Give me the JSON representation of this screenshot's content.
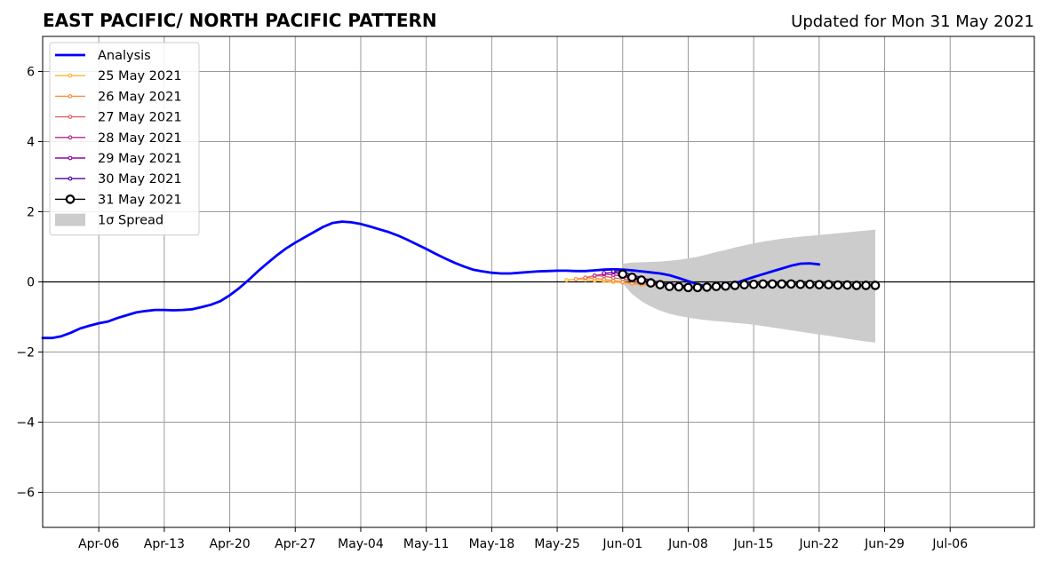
{
  "header": {
    "title": "EAST PACIFIC/ NORTH PACIFIC PATTERN",
    "updated": "Updated for Mon 31 May 2021"
  },
  "colors": {
    "analysis": "#0000ff",
    "spread": "#cccccc",
    "grid": "#999999",
    "forecast_31": "#000000"
  },
  "chart_data": {
    "type": "line",
    "title": "EAST PACIFIC/ NORTH PACIFIC PATTERN",
    "subtitle": "Updated for Mon 31 May 2021",
    "xlabel": "",
    "ylabel": "",
    "x_range": [
      "2021-03-31",
      "2021-07-15"
    ],
    "ylim": [
      -7,
      7
    ],
    "grid": true,
    "legend_position": "top-left",
    "x_ticks": [
      "Apr-06",
      "Apr-13",
      "Apr-20",
      "Apr-27",
      "May-04",
      "May-11",
      "May-18",
      "May-25",
      "Jun-01",
      "Jun-08",
      "Jun-15",
      "Jun-22",
      "Jun-29",
      "Jul-06"
    ],
    "x_tick_dates": [
      "2021-04-06",
      "2021-04-13",
      "2021-04-20",
      "2021-04-27",
      "2021-05-04",
      "2021-05-11",
      "2021-05-18",
      "2021-05-25",
      "2021-06-01",
      "2021-06-08",
      "2021-06-15",
      "2021-06-22",
      "2021-06-29",
      "2021-07-06"
    ],
    "y_ticks": [
      6,
      4,
      2,
      0,
      -2,
      -4,
      -6
    ],
    "y_tick_labels": [
      "6",
      "4",
      "2",
      "0",
      "−2",
      "−4",
      "−6"
    ],
    "analysis": {
      "name": "Analysis",
      "color": "#0000ff",
      "start_date": "2021-03-31",
      "values": [
        -1.6,
        -1.6,
        -1.55,
        -1.45,
        -1.33,
        -1.25,
        -1.18,
        -1.13,
        -1.03,
        -0.95,
        -0.87,
        -0.83,
        -0.8,
        -0.8,
        -0.81,
        -0.8,
        -0.78,
        -0.72,
        -0.65,
        -0.55,
        -0.38,
        -0.18,
        0.05,
        0.3,
        0.53,
        0.75,
        0.95,
        1.12,
        1.27,
        1.42,
        1.57,
        1.68,
        1.72,
        1.7,
        1.65,
        1.58,
        1.5,
        1.42,
        1.32,
        1.2,
        1.07,
        0.94,
        0.8,
        0.67,
        0.55,
        0.44,
        0.35,
        0.3,
        0.26,
        0.24,
        0.24,
        0.26,
        0.28,
        0.3,
        0.31,
        0.32,
        0.32,
        0.31,
        0.31,
        0.33,
        0.35,
        0.36,
        0.35,
        0.33,
        0.3,
        0.27,
        0.24,
        0.19,
        0.11,
        0.02,
        -0.07,
        -0.14,
        -0.15,
        -0.12,
        -0.04,
        0.05,
        0.14,
        0.22,
        0.3,
        0.38,
        0.46,
        0.52,
        0.53,
        0.5
      ]
    },
    "forecasts": [
      {
        "name": "25 May 2021",
        "color": "#fdb42f",
        "start_date": "2021-05-26",
        "values": [
          0.05,
          0.08,
          0.06,
          0.04,
          0.02,
          0.0,
          -0.02,
          -0.05,
          -0.08,
          -0.1,
          -0.12
        ]
      },
      {
        "name": "26 May 2021",
        "color": "#fb8d3c",
        "start_date": "2021-05-27",
        "values": [
          0.08,
          0.12,
          0.1,
          0.07,
          0.04,
          0.0,
          -0.04,
          -0.07,
          -0.1,
          -0.12,
          -0.14
        ]
      },
      {
        "name": "27 May 2021",
        "color": "#e16462",
        "start_date": "2021-05-28",
        "values": [
          0.12,
          0.18,
          0.16,
          0.12,
          0.08,
          0.03,
          -0.02,
          -0.06,
          -0.09,
          -0.11,
          -0.13
        ]
      },
      {
        "name": "28 May 2021",
        "color": "#b12a90",
        "start_date": "2021-05-29",
        "values": [
          0.18,
          0.22,
          0.2,
          0.16,
          0.1,
          0.05,
          0.0,
          -0.04,
          -0.07,
          -0.1,
          -0.12
        ]
      },
      {
        "name": "29 May 2021",
        "color": "#8b0aa5",
        "start_date": "2021-05-30",
        "values": [
          0.25,
          0.27,
          0.22,
          0.15,
          0.08,
          0.02,
          -0.03,
          -0.07,
          -0.1,
          -0.12
        ]
      },
      {
        "name": "30 May 2021",
        "color": "#5302a3",
        "start_date": "2021-05-31",
        "values": [
          0.3,
          0.28,
          0.2,
          0.12,
          0.05,
          -0.01,
          -0.06,
          -0.09,
          -0.12
        ]
      }
    ],
    "forecast_latest": {
      "name": "31 May 2021",
      "color": "#000000",
      "start_date": "2021-06-01",
      "values": [
        0.22,
        0.13,
        0.05,
        -0.03,
        -0.08,
        -0.13,
        -0.14,
        -0.16,
        -0.16,
        -0.15,
        -0.13,
        -0.12,
        -0.1,
        -0.08,
        -0.07,
        -0.06,
        -0.06,
        -0.06,
        -0.06,
        -0.07,
        -0.07,
        -0.08,
        -0.08,
        -0.09,
        -0.09,
        -0.1,
        -0.1,
        -0.1
      ]
    },
    "spread": {
      "name": "1σ Spread",
      "color": "#cccccc",
      "start_date": "2021-06-01",
      "upper": [
        0.52,
        0.55,
        0.56,
        0.57,
        0.58,
        0.6,
        0.63,
        0.67,
        0.72,
        0.78,
        0.85,
        0.91,
        0.98,
        1.04,
        1.1,
        1.15,
        1.19,
        1.23,
        1.26,
        1.29,
        1.31,
        1.34,
        1.36,
        1.39,
        1.41,
        1.44,
        1.46,
        1.49
      ],
      "lower": [
        -0.05,
        -0.35,
        -0.55,
        -0.7,
        -0.82,
        -0.91,
        -0.97,
        -1.02,
        -1.06,
        -1.09,
        -1.12,
        -1.14,
        -1.17,
        -1.19,
        -1.22,
        -1.26,
        -1.3,
        -1.34,
        -1.38,
        -1.42,
        -1.46,
        -1.5,
        -1.54,
        -1.58,
        -1.62,
        -1.66,
        -1.7,
        -1.73
      ]
    }
  },
  "legend": {
    "items": [
      {
        "label": "Analysis",
        "kind": "thick-line",
        "color": "#0000ff"
      },
      {
        "label": "25 May 2021",
        "kind": "line-marker",
        "color": "#fdb42f"
      },
      {
        "label": "26 May 2021",
        "kind": "line-marker",
        "color": "#fb8d3c"
      },
      {
        "label": "27 May 2021",
        "kind": "line-marker",
        "color": "#e16462"
      },
      {
        "label": "28 May 2021",
        "kind": "line-marker",
        "color": "#b12a90"
      },
      {
        "label": "29 May 2021",
        "kind": "line-marker",
        "color": "#8b0aa5"
      },
      {
        "label": "30 May 2021",
        "kind": "line-marker",
        "color": "#5302a3"
      },
      {
        "label": "31 May 2021",
        "kind": "big-marker",
        "color": "#000000"
      },
      {
        "label": "1σ Spread",
        "kind": "patch",
        "color": "#cccccc"
      }
    ]
  }
}
